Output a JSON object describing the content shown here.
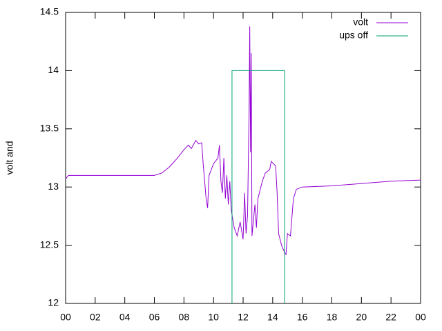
{
  "chart_data": {
    "type": "line",
    "ylabel": "volt and",
    "xlim": [
      0,
      24
    ],
    "xticks": [
      {
        "value": 0,
        "label": "00"
      },
      {
        "value": 2,
        "label": "02"
      },
      {
        "value": 4,
        "label": "04"
      },
      {
        "value": 6,
        "label": "06"
      },
      {
        "value": 8,
        "label": "08"
      },
      {
        "value": 10,
        "label": "10"
      },
      12,
      14,
      16,
      18,
      20,
      22,
      {
        "value": 24,
        "label": "00"
      }
    ],
    "ylim": [
      12,
      14.5
    ],
    "yticks": [
      12,
      12.5,
      13,
      13.5,
      14,
      14.5
    ],
    "legend": "top-right",
    "series": [
      {
        "name": "volt",
        "color": "#9400d3",
        "x": [
          0,
          0.2,
          6.0,
          6.5,
          7,
          7.5,
          8,
          8.3,
          8.5,
          8.8,
          9,
          9.2,
          9.3,
          9.5,
          9.6,
          9.7,
          10,
          10.3,
          10.4,
          10.5,
          10.6,
          10.7,
          10.8,
          10.9,
          11.0,
          11.1,
          11.2,
          11.4,
          11.6,
          11.8,
          12.0,
          12.1,
          12.2,
          12.3,
          12.4,
          12.45,
          12.5,
          12.55,
          12.6,
          12.8,
          12.9,
          13.0,
          13.3,
          13.5,
          13.8,
          13.9,
          14.2,
          14.3,
          14.4,
          14.6,
          14.8,
          14.9,
          15.0,
          15.2,
          15.4,
          15.6,
          16,
          18,
          20,
          22,
          24
        ],
        "values": [
          13.07,
          13.1,
          13.1,
          13.12,
          13.17,
          13.24,
          13.32,
          13.36,
          13.33,
          13.4,
          13.37,
          13.38,
          13.2,
          12.9,
          12.82,
          13.1,
          13.2,
          13.25,
          13.36,
          13.05,
          12.95,
          13.25,
          12.9,
          13.1,
          12.85,
          13.05,
          12.8,
          12.65,
          12.58,
          12.7,
          12.55,
          12.95,
          12.6,
          12.75,
          13.6,
          14.38,
          13.3,
          14.15,
          12.58,
          12.85,
          12.65,
          12.9,
          13.05,
          13.12,
          13.15,
          13.22,
          13.18,
          12.95,
          12.6,
          12.5,
          12.44,
          12.42,
          12.6,
          12.58,
          12.9,
          12.98,
          13.0,
          13.01,
          13.03,
          13.05,
          13.06
        ]
      },
      {
        "name": "ups off",
        "color": "#009e73",
        "x": [
          11.25,
          11.25,
          14.8,
          14.8
        ],
        "values": [
          12,
          14,
          14,
          12
        ]
      }
    ]
  }
}
